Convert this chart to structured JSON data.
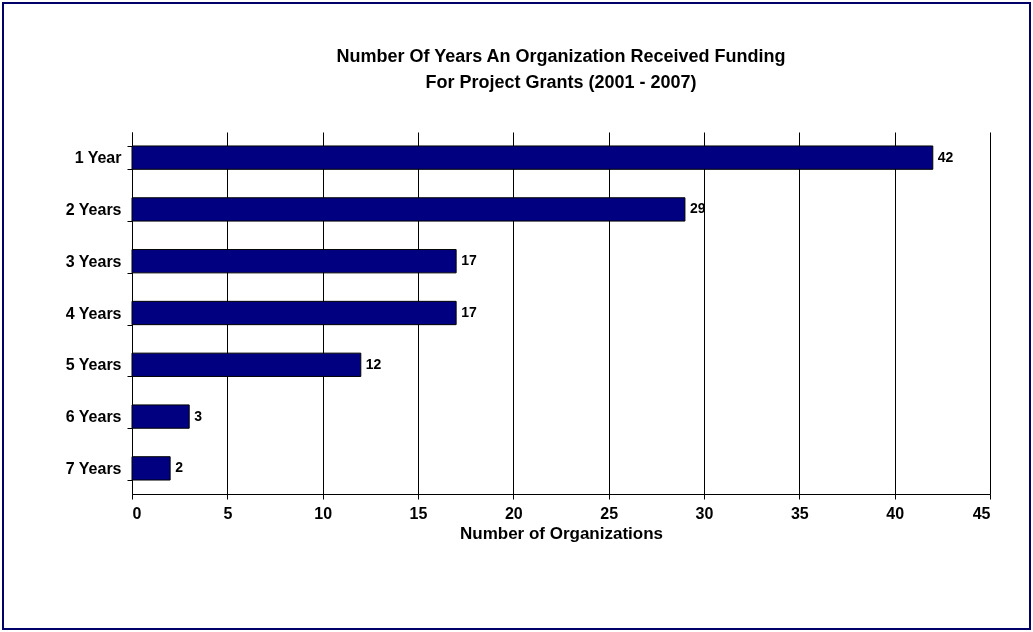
{
  "chart_data": {
    "type": "bar",
    "orientation": "horizontal",
    "title": "Number Of Years An Organization Received Funding\nFor Project Grants  (2001 - 2007)",
    "xlabel": "Number of Organizations",
    "categories": [
      "1 Year",
      "2 Years",
      "3 Years",
      "4 Years",
      "5 Years",
      "6 Years",
      "7 Years"
    ],
    "values": [
      42,
      29,
      17,
      17,
      12,
      3,
      2
    ],
    "color": "#000080",
    "xlim": [
      0,
      45
    ],
    "xticks": [
      0,
      5,
      10,
      15,
      20,
      25,
      30,
      35,
      40,
      45
    ],
    "grid": "x",
    "data_labels": true
  }
}
